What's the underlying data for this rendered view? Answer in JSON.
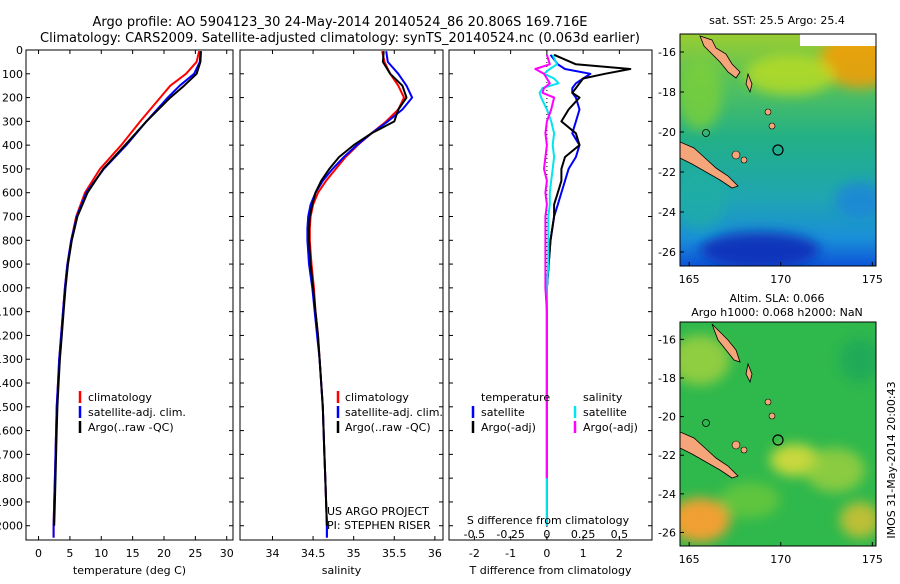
{
  "title": {
    "line1": "Argo profile: AO 5904123_30 24-May-2014 20140524_86 20.806S 169.716E",
    "line2": "Climatology: CARS2009. Satellite-adjusted climatology: synTS_20140524.nc (0.063d earlier)"
  },
  "credits": {
    "line1": "US ARGO PROJECT",
    "line2": "PI: STEPHEN RISER"
  },
  "side_stamp": "IMOS 31-May-2014 20:00:43",
  "colors": {
    "climatology": "#ff0000",
    "satellite": "#0000ff",
    "argo": "#000000",
    "sal_satellite": "#00e5ee",
    "sal_argo": "#ff00ff"
  },
  "chart_data": [
    {
      "id": "temperature",
      "type": "line",
      "xlabel": "temperature (deg C)",
      "xlim": [
        -2,
        31
      ],
      "xticks": [
        0,
        5,
        10,
        15,
        20,
        25,
        30
      ],
      "ylim": [
        0,
        2060
      ],
      "yticks": [
        0,
        100,
        200,
        300,
        400,
        500,
        600,
        700,
        800,
        900,
        1000,
        1100,
        1200,
        1300,
        1400,
        1500,
        1600,
        1700,
        1800,
        1900,
        2000
      ],
      "legend": [
        "climatology",
        "satellite-adj. clim.",
        "Argo(..raw -QC)"
      ],
      "depth": [
        5,
        50,
        100,
        150,
        200,
        300,
        400,
        500,
        600,
        700,
        800,
        900,
        1000,
        1100,
        1200,
        1300,
        1400,
        1500,
        1600,
        1700,
        1800,
        1900,
        2000,
        2050
      ],
      "series": [
        {
          "name": "climatology",
          "values": [
            25.6,
            25.2,
            23.5,
            21.0,
            19.4,
            16.2,
            13.2,
            9.8,
            7.4,
            6.0,
            5.2,
            4.6,
            4.2,
            3.9,
            3.6,
            3.3,
            3.1,
            2.9,
            2.8,
            2.7,
            2.6,
            2.5,
            2.4,
            2.4
          ]
        },
        {
          "name": "satellite-adj. clim.",
          "values": [
            25.8,
            25.7,
            24.8,
            22.5,
            20.6,
            17.2,
            14.0,
            10.4,
            7.6,
            6.1,
            5.2,
            4.6,
            4.2,
            3.9,
            3.6,
            3.3,
            3.1,
            2.9,
            2.8,
            2.7,
            2.6,
            2.5,
            2.4,
            2.4
          ]
        },
        {
          "name": "Argo(..raw -QC)",
          "values": [
            25.9,
            25.8,
            25.2,
            23.2,
            21.0,
            17.2,
            13.8,
            10.3,
            7.8,
            6.2,
            5.3,
            4.7,
            4.3,
            4.0,
            3.7,
            3.4,
            3.2,
            3.0,
            2.9,
            2.8,
            2.7,
            2.6,
            2.5,
            null
          ]
        }
      ]
    },
    {
      "id": "salinity",
      "type": "line",
      "xlabel": "salinity",
      "xlim": [
        33.6,
        36.1
      ],
      "xticks": [
        34,
        34.5,
        35,
        35.5,
        36
      ],
      "ylim": [
        0,
        2060
      ],
      "legend": [
        "climatology",
        "satellite-adj. clim.",
        "Argo(..raw -QC)"
      ],
      "depth": [
        5,
        50,
        100,
        150,
        200,
        250,
        300,
        350,
        400,
        450,
        500,
        550,
        600,
        650,
        700,
        750,
        800,
        850,
        900,
        1000,
        1100,
        1200,
        1300,
        1400,
        1500,
        1600,
        1700,
        1800,
        1900,
        2000,
        2050
      ],
      "series": [
        {
          "name": "climatology",
          "values": [
            35.35,
            35.38,
            35.45,
            35.55,
            35.62,
            35.55,
            35.4,
            35.22,
            35.05,
            34.9,
            34.78,
            34.66,
            34.56,
            34.5,
            34.47,
            34.46,
            34.46,
            34.47,
            34.48,
            34.51,
            34.53,
            34.56,
            34.58,
            34.6,
            34.62,
            34.63,
            34.64,
            34.65,
            34.66,
            34.67,
            34.67
          ]
        },
        {
          "name": "satellite-adj. clim.",
          "values": [
            35.4,
            35.42,
            35.55,
            35.65,
            35.72,
            35.6,
            35.42,
            35.22,
            35.04,
            34.88,
            34.74,
            34.62,
            34.53,
            34.47,
            34.44,
            34.43,
            34.43,
            34.44,
            34.45,
            34.49,
            34.52,
            34.55,
            34.58,
            34.6,
            34.62,
            34.63,
            34.64,
            34.65,
            34.66,
            34.67,
            34.67
          ]
        },
        {
          "name": "Argo(..raw -QC)",
          "values": [
            35.37,
            35.36,
            35.45,
            35.6,
            35.65,
            35.55,
            35.5,
            35.22,
            35.0,
            34.82,
            34.7,
            34.6,
            34.53,
            34.49,
            34.46,
            34.45,
            34.45,
            34.46,
            34.47,
            34.5,
            34.53,
            34.56,
            34.58,
            34.6,
            34.62,
            34.63,
            34.64,
            34.65,
            34.66,
            34.67,
            null
          ]
        }
      ]
    },
    {
      "id": "differences",
      "type": "line",
      "xlabel": "T difference from climatology",
      "xlabel_top": "S difference from climatology",
      "xlim": [
        -2.7,
        2.9
      ],
      "xticks": [
        -2,
        -1,
        0,
        1,
        2
      ],
      "s_xticks": [
        -0.5,
        -0.25,
        0,
        0.25,
        0.5
      ],
      "s_scale": 4,
      "ylim": [
        0,
        2060
      ],
      "legend_headers": [
        "temperature",
        "salinity"
      ],
      "legend": [
        "satellite",
        "Argo(-adj)",
        "satellite",
        "Argo(-adj)"
      ],
      "depth": [
        20,
        60,
        80,
        100,
        120,
        140,
        160,
        180,
        200,
        250,
        300,
        350,
        400,
        450,
        500,
        550,
        600,
        650,
        700,
        800,
        900,
        1000,
        1100,
        1200,
        1400,
        1600,
        1800,
        2000
      ],
      "series": [
        {
          "name": "temperature satellite",
          "values": [
            0.1,
            0.3,
            0.5,
            1.2,
            1.0,
            0.8,
            0.7,
            0.7,
            0.8,
            0.9,
            0.8,
            0.7,
            0.9,
            0.8,
            0.6,
            0.5,
            0.4,
            0.3,
            0.2,
            0.1,
            0.05,
            0.0,
            0.0,
            0.0,
            0.0,
            0.0,
            0.0,
            0.0
          ]
        },
        {
          "name": "temperature Argo(-adj)",
          "values": [
            0.2,
            0.8,
            2.3,
            1.6,
            1.0,
            0.9,
            0.8,
            0.7,
            0.9,
            0.6,
            0.4,
            0.8,
            0.9,
            0.5,
            0.4,
            0.4,
            0.3,
            0.2,
            0.2,
            0.1,
            0.05,
            0.0,
            0.0,
            0.0,
            0.0,
            0.0,
            0.0,
            null
          ]
        },
        {
          "name": "salinity satellite",
          "values": [
            0.04,
            0.07,
            0.02,
            -0.02,
            0.05,
            0.08,
            -0.03,
            -0.05,
            -0.04,
            0.0,
            0.03,
            0.05,
            0.04,
            0.05,
            0.04,
            0.03,
            0.02,
            0.02,
            0.01,
            0.01,
            0.01,
            0.0,
            0.0,
            0.0,
            0.0,
            0.0,
            0.0,
            0.0
          ]
        },
        {
          "name": "salinity Argo(-adj)",
          "values": [
            0.0,
            0.02,
            -0.08,
            -0.02,
            0.0,
            0.02,
            -0.02,
            -0.03,
            0.05,
            0.03,
            0.0,
            -0.01,
            0.0,
            -0.01,
            -0.02,
            0.0,
            -0.01,
            0.0,
            -0.01,
            -0.01,
            -0.01,
            -0.01,
            0.0,
            0.0,
            0.0,
            0.0,
            0.0,
            null
          ]
        }
      ]
    }
  ],
  "maps": [
    {
      "id": "sst-map",
      "title": "sat. SST: 25.5 Argo: 25.4",
      "xticks": [
        165,
        170,
        175
      ],
      "yticks": [
        -16,
        -18,
        -20,
        -22,
        -24,
        -26
      ]
    },
    {
      "id": "sla-map",
      "title1": "Altim. SLA: 0.066",
      "title2": "Argo h1000: 0.068 h2000: NaN",
      "xticks": [
        165,
        170,
        175
      ],
      "yticks": [
        -16,
        -18,
        -20,
        -22,
        -24,
        -26
      ]
    }
  ]
}
